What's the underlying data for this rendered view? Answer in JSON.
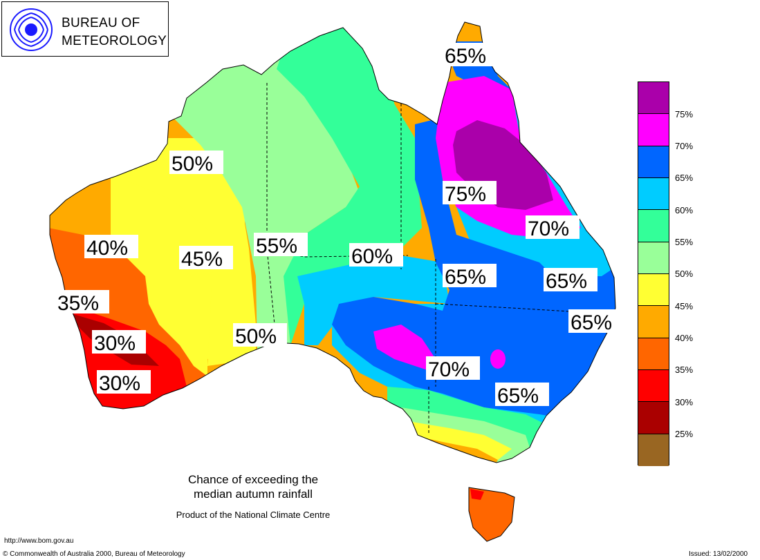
{
  "logo": {
    "line1": "BUREAU OF",
    "line2": "METEOROLOGY",
    "icon": "bom-swirl-icon"
  },
  "map": {
    "labels": [
      "65%",
      "50%",
      "75%",
      "70%",
      "40%",
      "45%",
      "55%",
      "60%",
      "65%",
      "65%",
      "35%",
      "65%",
      "30%",
      "50%",
      "70%",
      "30%",
      "65%"
    ]
  },
  "legend": {
    "colors": [
      "#aa00aa",
      "#ff00ff",
      "#0066ff",
      "#00ccff",
      "#33ff99",
      "#99ff99",
      "#ffff33",
      "#ffaa00",
      "#ff6600",
      "#ff0000",
      "#aa0000",
      "#996622"
    ],
    "labels": [
      "75%",
      "70%",
      "65%",
      "60%",
      "55%",
      "50%",
      "45%",
      "40%",
      "35%",
      "30%",
      "25%"
    ]
  },
  "caption": {
    "line1": "Chance of exceeding the",
    "line2": "median autumn rainfall",
    "line3": "Product of the National Climate Centre"
  },
  "footer": {
    "url": "http://www.bom.gov.au",
    "copyright": "© Commonwealth of Australia 2000, Bureau of Meteorology",
    "issued": "Issued: 13/02/2000"
  }
}
